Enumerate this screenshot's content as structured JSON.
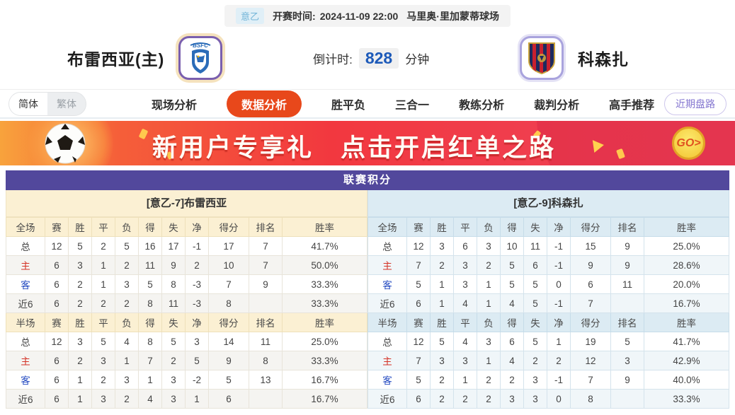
{
  "top_bar": {
    "league_badge": "意乙",
    "kickoff_label": "开赛时间:",
    "kickoff_time": "2024-11-09 22:00",
    "venue": "马里奥·里加蒙蒂球场"
  },
  "match_header": {
    "home_name": "布雷西亚(主)",
    "home_logo_text": "BSFC",
    "away_name": "科森扎",
    "countdown_label": "倒计时:",
    "countdown_value": "828",
    "countdown_unit": "分钟"
  },
  "nav": {
    "lang_simplified": "简体",
    "lang_traditional": "繁体",
    "tabs": [
      {
        "label": "现场分析",
        "active": false
      },
      {
        "label": "数据分析",
        "active": true
      },
      {
        "label": "胜平负",
        "active": false
      },
      {
        "label": "三合一",
        "active": false
      },
      {
        "label": "教练分析",
        "active": false
      },
      {
        "label": "裁判分析",
        "active": false
      },
      {
        "label": "高手推荐",
        "active": false
      }
    ],
    "recent_trends_label": "近期盘路"
  },
  "banner": {
    "text_part1": "新用户专享礼",
    "text_part2": "点击开启红单之路",
    "go_label": "GO>"
  },
  "league_table": {
    "title": "联赛积分",
    "sides": {
      "home": {
        "header": "[意乙-7]布雷西亚",
        "sections": [
          {
            "columns": [
              "全场",
              "赛",
              "胜",
              "平",
              "负",
              "得",
              "失",
              "净",
              "得分",
              "排名",
              "胜率"
            ],
            "rows": [
              {
                "label": "总",
                "type": "total-row",
                "cells": [
                  "12",
                  "5",
                  "2",
                  "5",
                  "16",
                  "17",
                  "-1",
                  "17",
                  "7",
                  "41.7%"
                ]
              },
              {
                "label": "主",
                "type": "home-row",
                "cells": [
                  "6",
                  "3",
                  "1",
                  "2",
                  "11",
                  "9",
                  "2",
                  "10",
                  "7",
                  "50.0%"
                ]
              },
              {
                "label": "客",
                "type": "away-row",
                "cells": [
                  "6",
                  "2",
                  "1",
                  "3",
                  "5",
                  "8",
                  "-3",
                  "7",
                  "9",
                  "33.3%"
                ]
              },
              {
                "label": "近6",
                "type": "recent-row",
                "cells": [
                  "6",
                  "2",
                  "2",
                  "2",
                  "8",
                  "11",
                  "-3",
                  "8",
                  "",
                  "33.3%"
                ]
              }
            ]
          },
          {
            "columns": [
              "半场",
              "赛",
              "胜",
              "平",
              "负",
              "得",
              "失",
              "净",
              "得分",
              "排名",
              "胜率"
            ],
            "rows": [
              {
                "label": "总",
                "type": "total-row",
                "cells": [
                  "12",
                  "3",
                  "5",
                  "4",
                  "8",
                  "5",
                  "3",
                  "14",
                  "11",
                  "25.0%"
                ]
              },
              {
                "label": "主",
                "type": "home-row",
                "cells": [
                  "6",
                  "2",
                  "3",
                  "1",
                  "7",
                  "2",
                  "5",
                  "9",
                  "8",
                  "33.3%"
                ]
              },
              {
                "label": "客",
                "type": "away-row",
                "cells": [
                  "6",
                  "1",
                  "2",
                  "3",
                  "1",
                  "3",
                  "-2",
                  "5",
                  "13",
                  "16.7%"
                ]
              },
              {
                "label": "近6",
                "type": "recent-row",
                "cells": [
                  "6",
                  "1",
                  "3",
                  "2",
                  "4",
                  "3",
                  "1",
                  "6",
                  "",
                  "16.7%"
                ]
              }
            ]
          }
        ]
      },
      "away": {
        "header": "[意乙-9]科森扎",
        "sections": [
          {
            "columns": [
              "全场",
              "赛",
              "胜",
              "平",
              "负",
              "得",
              "失",
              "净",
              "得分",
              "排名",
              "胜率"
            ],
            "rows": [
              {
                "label": "总",
                "type": "total-row",
                "cells": [
                  "12",
                  "3",
                  "6",
                  "3",
                  "10",
                  "11",
                  "-1",
                  "15",
                  "9",
                  "25.0%"
                ]
              },
              {
                "label": "主",
                "type": "home-row",
                "cells": [
                  "7",
                  "2",
                  "3",
                  "2",
                  "5",
                  "6",
                  "-1",
                  "9",
                  "9",
                  "28.6%"
                ]
              },
              {
                "label": "客",
                "type": "away-row",
                "cells": [
                  "5",
                  "1",
                  "3",
                  "1",
                  "5",
                  "5",
                  "0",
                  "6",
                  "11",
                  "20.0%"
                ]
              },
              {
                "label": "近6",
                "type": "recent-row",
                "cells": [
                  "6",
                  "1",
                  "4",
                  "1",
                  "4",
                  "5",
                  "-1",
                  "7",
                  "",
                  "16.7%"
                ]
              }
            ]
          },
          {
            "columns": [
              "半场",
              "赛",
              "胜",
              "平",
              "负",
              "得",
              "失",
              "净",
              "得分",
              "排名",
              "胜率"
            ],
            "rows": [
              {
                "label": "总",
                "type": "total-row",
                "cells": [
                  "12",
                  "5",
                  "4",
                  "3",
                  "6",
                  "5",
                  "1",
                  "19",
                  "5",
                  "41.7%"
                ]
              },
              {
                "label": "主",
                "type": "home-row",
                "cells": [
                  "7",
                  "3",
                  "3",
                  "1",
                  "4",
                  "2",
                  "2",
                  "12",
                  "3",
                  "42.9%"
                ]
              },
              {
                "label": "客",
                "type": "away-row",
                "cells": [
                  "5",
                  "2",
                  "1",
                  "2",
                  "2",
                  "3",
                  "-1",
                  "7",
                  "9",
                  "40.0%"
                ]
              },
              {
                "label": "近6",
                "type": "recent-row",
                "cells": [
                  "6",
                  "2",
                  "2",
                  "2",
                  "3",
                  "3",
                  "0",
                  "8",
                  "",
                  "33.3%"
                ]
              }
            ]
          }
        ]
      }
    }
  },
  "colors": {
    "accent_purple": "#52489c",
    "active_tab_orange": "#e8481b",
    "home_panel_cream": "#fbf0d3",
    "away_panel_blue": "#dcebf3",
    "countdown_blue": "#1d5ab9",
    "home_row_red": "#d43226",
    "away_row_blue": "#2148c0"
  }
}
